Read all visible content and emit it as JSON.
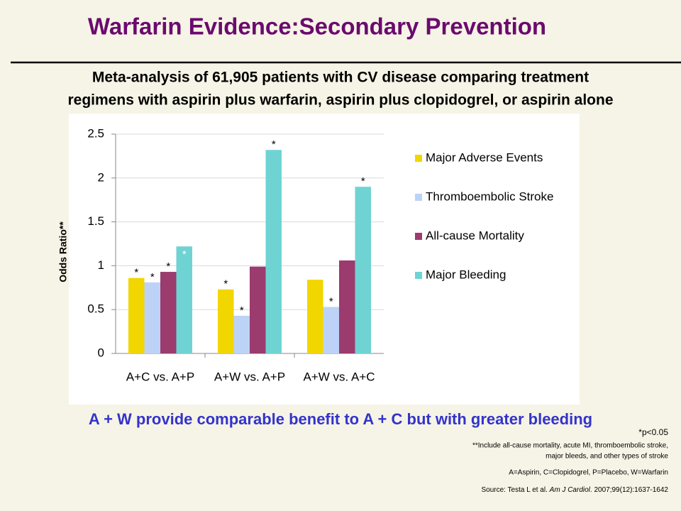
{
  "slide": {
    "title": "Warfarin Evidence:Secondary Prevention",
    "subtitle": [
      "Meta-analysis of 61,905 patients with CV disease comparing treatment",
      "regimens with aspirin plus warfarin, aspirin plus clopidogrel, or aspirin alone"
    ],
    "conclusion": "A + W provide comparable benefit to A + C but with greater bleeding",
    "footnotes": [
      "*p<0.05",
      "**Include all-cause mortality, acute MI, thromboembolic stroke,",
      "major bleeds, and other types of stroke",
      "A=Aspirin, C=Clopidogrel, P=Placebo, W=Warfarin"
    ],
    "source": [
      "Source: Testa L et al. ",
      "Am J Cardiol",
      ". 2007;99(12):1637-1642"
    ]
  },
  "chart_data": {
    "type": "bar",
    "y_label": "Odds Ratio**",
    "categories": [
      "A+C vs. A+P",
      "A+W vs. A+P",
      "A+W vs. A+C"
    ],
    "series": [
      {
        "name": "Major Adverse Events",
        "color": "#f2d600",
        "values": [
          0.86,
          0.73,
          0.84
        ],
        "annotations": [
          "*",
          "*",
          null
        ]
      },
      {
        "name": "Thromboembolic Stroke",
        "color": "#bcd3f7",
        "values": [
          0.81,
          0.43,
          0.53
        ],
        "annotations": [
          "*",
          "*",
          "*"
        ]
      },
      {
        "name": "All-cause Mortality",
        "color": "#9b3b6e",
        "values": [
          0.93,
          0.99,
          1.06
        ],
        "annotations": [
          "*",
          null,
          null
        ]
      },
      {
        "name": "Major Bleeding",
        "color": "#6fd3d3",
        "values": [
          1.22,
          2.32,
          1.9
        ],
        "annotations": [
          "*",
          "*",
          "*"
        ]
      }
    ],
    "ylim": [
      0,
      2.5
    ],
    "yticks": [
      0,
      0.5,
      1,
      1.5,
      2,
      2.5
    ],
    "grid": true,
    "legend": "right"
  }
}
